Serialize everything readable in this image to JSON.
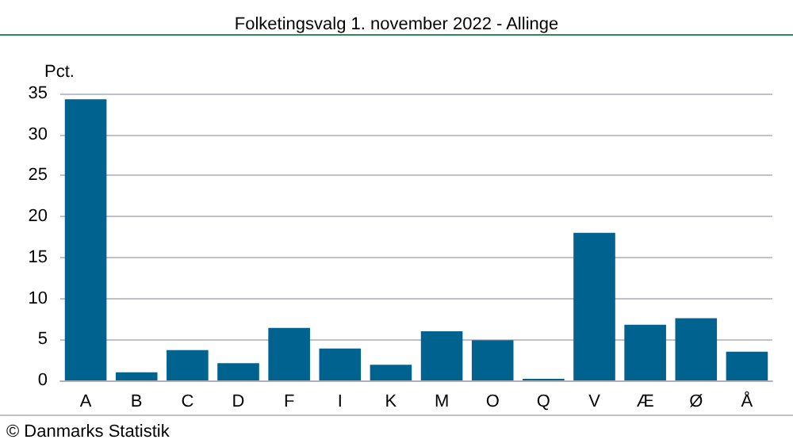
{
  "chart_data": {
    "type": "bar",
    "title": "Folketingsvalg 1. november 2022 - Allinge",
    "ylabel": "Pct.",
    "categories": [
      "A",
      "B",
      "C",
      "D",
      "F",
      "I",
      "K",
      "M",
      "O",
      "Q",
      "V",
      "Æ",
      "Ø",
      "Å"
    ],
    "values": [
      34.3,
      1.0,
      3.7,
      2.1,
      6.4,
      3.9,
      1.9,
      6.0,
      4.9,
      0.2,
      18.0,
      6.8,
      7.6,
      3.5
    ],
    "color": "#00628f",
    "ylim": [
      0,
      35
    ],
    "yticks": [
      0,
      5,
      10,
      15,
      20,
      25,
      30,
      35
    ],
    "grid": "y",
    "annotations": [
      "© Danmarks Statistik"
    ]
  }
}
